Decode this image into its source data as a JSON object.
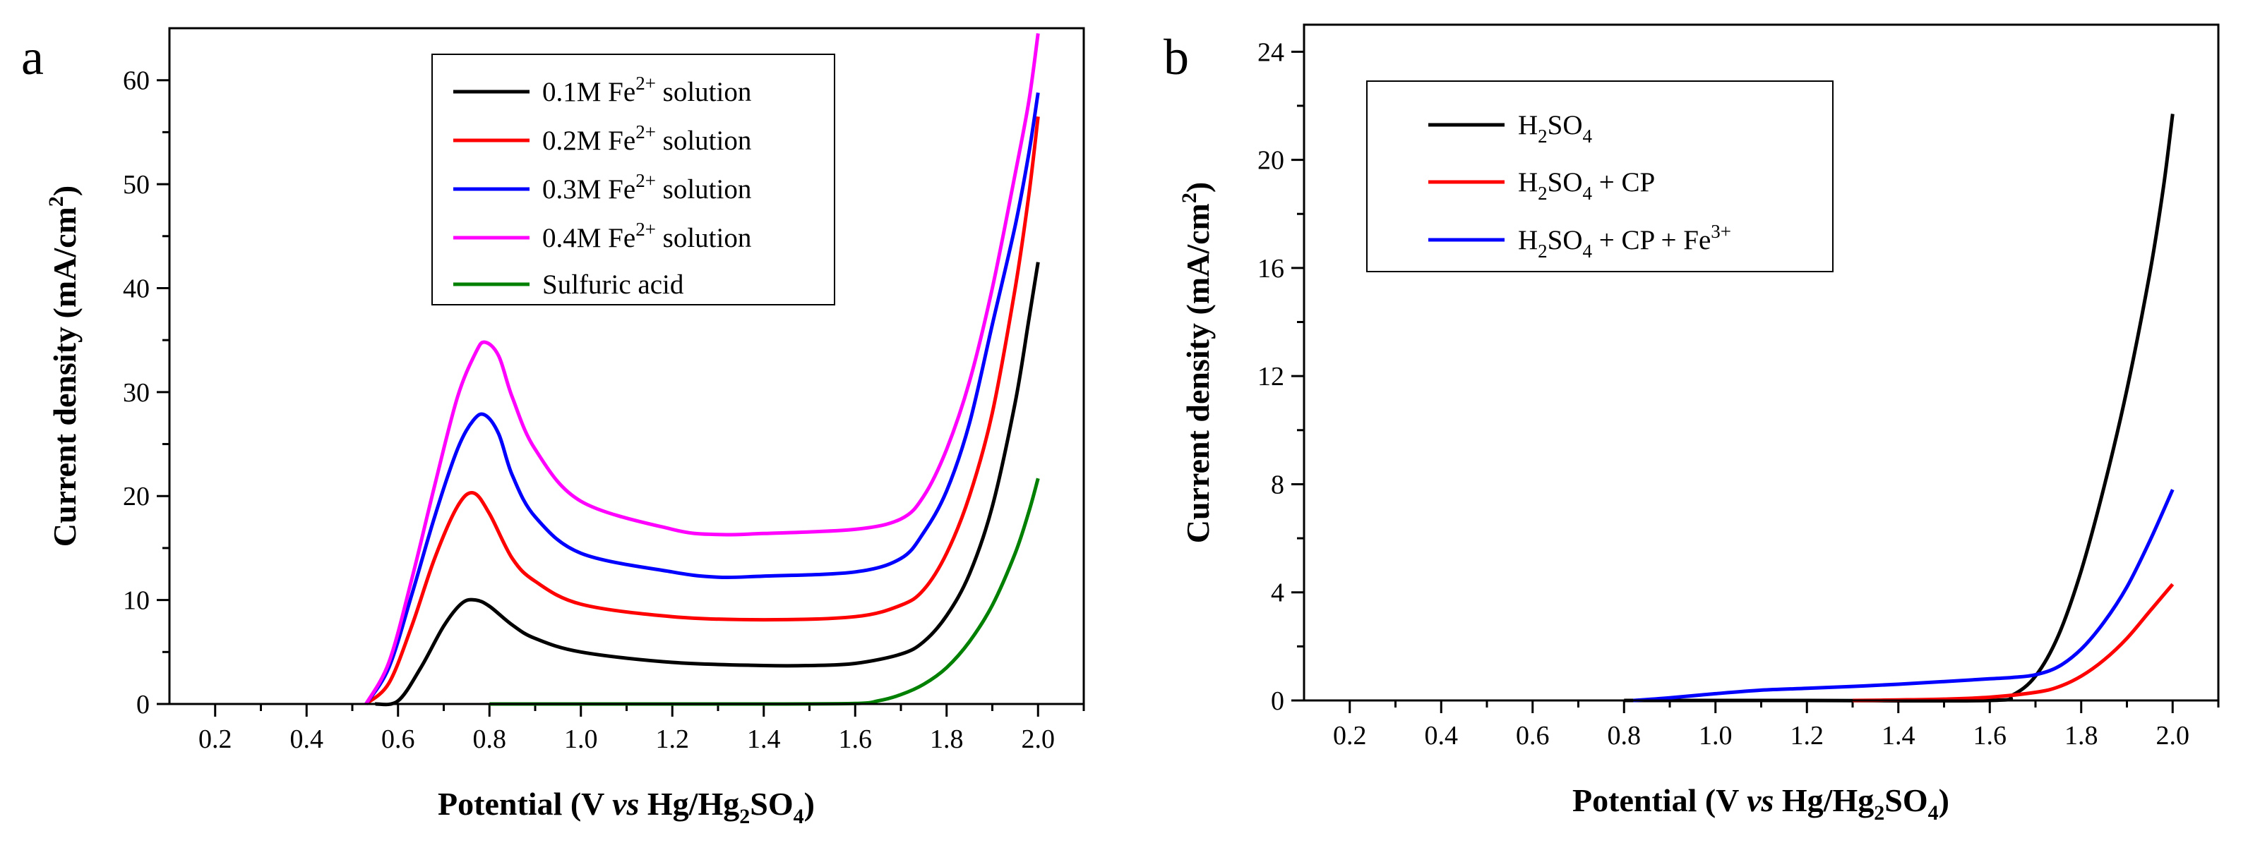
{
  "charts": [
    {
      "panel_label": "a",
      "x_axis": {
        "label_prefix": "Potential (V ",
        "label_italic": "vs",
        "label_middle": " Hg/Hg",
        "label_sub": "2",
        "label_after": "SO",
        "label_sub2": "4",
        "label_close": ")"
      },
      "y_axis": {
        "label_prefix": "Current density (mA/cm",
        "label_sup": "2",
        "label_close": ")"
      },
      "legend": [
        {
          "main": "0.1M  Fe",
          "sup": "2+",
          "after": " solution",
          "color": "#000000"
        },
        {
          "main": "0.2M Fe",
          "sup": "2+",
          "after": " solution",
          "color": "#ff0000"
        },
        {
          "main": "0.3M  Fe",
          "sup": "2+",
          "after": " solution",
          "color": "#0000ff"
        },
        {
          "main": "0.4M  Fe",
          "sup": "2+",
          "after": " solution",
          "color": "#ff00ff"
        },
        {
          "main": "Sulfuric acid",
          "sup": "",
          "after": "",
          "color": "#008000"
        }
      ]
    },
    {
      "panel_label": "b",
      "x_axis": {
        "label_prefix": "Potential (V ",
        "label_italic": "vs",
        "label_middle": " Hg/Hg",
        "label_sub": "2",
        "label_after": "SO",
        "label_sub2": "4",
        "label_close": ")"
      },
      "y_axis": {
        "label_prefix": "Current density (mA/cm",
        "label_sup": "2",
        "label_close": ")"
      },
      "legend": [
        {
          "p1": "H",
          "s1": "2",
          "p2": "SO",
          "s2": "4",
          "p3": "",
          "sup": "",
          "color": "#000000"
        },
        {
          "p1": "H",
          "s1": "2",
          "p2": "SO",
          "s2": "4",
          "p3": " + CP",
          "sup": "",
          "color": "#ff0000"
        },
        {
          "p1": "H",
          "s1": "2",
          "p2": "SO",
          "s2": "4",
          "p3": " + CP + Fe",
          "sup": "3+",
          "color": "#0000ff"
        }
      ]
    }
  ],
  "chart_data": [
    {
      "type": "line",
      "title": "a",
      "xlabel": "Potential (V vs Hg/Hg2SO4)",
      "ylabel": "Current density (mA/cm2)",
      "xlim": [
        0.1,
        2.1
      ],
      "ylim": [
        0,
        65
      ],
      "xticks": [
        0.2,
        0.4,
        0.6,
        0.8,
        1.0,
        1.2,
        1.4,
        1.6,
        1.8,
        2.0
      ],
      "xtick_labels": [
        "0.2",
        "0.4",
        "0.6",
        "0.8",
        "1.0",
        "1.2",
        "1.4",
        "1.6",
        "1.8",
        "2.0"
      ],
      "yticks": [
        0,
        10,
        20,
        30,
        40,
        50,
        60
      ],
      "ytick_labels": [
        "0",
        "10",
        "20",
        "30",
        "40",
        "50",
        "60"
      ],
      "series": [
        {
          "name": "0.1M Fe2+ solution",
          "color": "#000000",
          "x": [
            0.55,
            0.6,
            0.65,
            0.7,
            0.74,
            0.77,
            0.8,
            0.85,
            0.9,
            1.0,
            1.2,
            1.4,
            1.5,
            1.6,
            1.7,
            1.75,
            1.8,
            1.85,
            1.9,
            1.95,
            1.98,
            2.0
          ],
          "y": [
            0,
            0.3,
            3.5,
            7.5,
            9.7,
            10.0,
            9.4,
            7.6,
            6.3,
            5.0,
            4.0,
            3.7,
            3.7,
            3.9,
            4.8,
            6.0,
            8.5,
            12.5,
            19.0,
            29.0,
            37.0,
            42.5
          ]
        },
        {
          "name": "0.2M Fe2+ solution",
          "color": "#ff0000",
          "x": [
            0.53,
            0.58,
            0.63,
            0.68,
            0.73,
            0.765,
            0.8,
            0.85,
            0.9,
            1.0,
            1.2,
            1.4,
            1.6,
            1.7,
            1.75,
            1.8,
            1.85,
            1.9,
            1.95,
            1.98,
            2.0
          ],
          "y": [
            0,
            2.0,
            7.5,
            14.0,
            19.0,
            20.3,
            18.3,
            14.0,
            11.8,
            9.6,
            8.4,
            8.1,
            8.4,
            9.5,
            11.0,
            14.5,
            20.0,
            28.0,
            40.0,
            49.0,
            56.5
          ]
        },
        {
          "name": "0.3M Fe2+ solution",
          "color": "#0000ff",
          "x": [
            0.53,
            0.58,
            0.63,
            0.68,
            0.73,
            0.765,
            0.79,
            0.82,
            0.85,
            0.9,
            1.0,
            1.2,
            1.3,
            1.4,
            1.6,
            1.7,
            1.75,
            1.8,
            1.85,
            1.9,
            1.95,
            1.98,
            2.0
          ],
          "y": [
            0,
            3.5,
            10.5,
            18.0,
            24.5,
            27.3,
            27.8,
            26.0,
            22.0,
            18.0,
            14.5,
            12.7,
            12.2,
            12.3,
            12.7,
            14.0,
            16.5,
            20.5,
            27.0,
            36.5,
            46.0,
            53.0,
            58.8
          ]
        },
        {
          "name": "0.4M Fe2+ solution",
          "color": "#ff00ff",
          "x": [
            0.53,
            0.58,
            0.63,
            0.68,
            0.73,
            0.77,
            0.79,
            0.82,
            0.85,
            0.9,
            1.0,
            1.2,
            1.3,
            1.4,
            1.6,
            1.7,
            1.75,
            1.8,
            1.85,
            1.9,
            1.95,
            1.98,
            2.0
          ],
          "y": [
            0,
            4.0,
            12.0,
            21.0,
            29.5,
            33.8,
            34.8,
            33.5,
            29.5,
            24.5,
            19.5,
            16.8,
            16.3,
            16.4,
            16.8,
            17.8,
            20.0,
            24.5,
            31.0,
            40.0,
            51.0,
            58.0,
            64.5
          ]
        },
        {
          "name": "Sulfuric acid",
          "color": "#008000",
          "x": [
            0.8,
            1.0,
            1.2,
            1.4,
            1.6,
            1.65,
            1.7,
            1.75,
            1.8,
            1.85,
            1.9,
            1.95,
            1.98,
            2.0
          ],
          "y": [
            0,
            0,
            0,
            0,
            0.05,
            0.3,
            0.9,
            1.9,
            3.5,
            6.0,
            9.5,
            14.5,
            18.5,
            21.7
          ]
        }
      ]
    },
    {
      "type": "line",
      "title": "b",
      "xlabel": "Potential (V vs Hg/Hg2SO4)",
      "ylabel": "Current density (mA/cm2)",
      "xlim": [
        0.1,
        2.1
      ],
      "ylim": [
        0,
        25
      ],
      "xticks": [
        0.2,
        0.4,
        0.6,
        0.8,
        1.0,
        1.2,
        1.4,
        1.6,
        1.8,
        2.0
      ],
      "xtick_labels": [
        "0.2",
        "0.4",
        "0.6",
        "0.8",
        "1.0",
        "1.2",
        "1.4",
        "1.6",
        "1.8",
        "2.0"
      ],
      "yticks": [
        0,
        4,
        8,
        12,
        16,
        20,
        24
      ],
      "ytick_labels": [
        "0",
        "4",
        "8",
        "12",
        "16",
        "20",
        "24"
      ],
      "series": [
        {
          "name": "H2SO4",
          "color": "#000000",
          "x": [
            0.8,
            1.2,
            1.6,
            1.65,
            1.7,
            1.75,
            1.8,
            1.85,
            1.9,
            1.95,
            1.98,
            2.0
          ],
          "y": [
            0,
            0,
            0,
            0.2,
            0.9,
            2.4,
            4.8,
            7.9,
            11.5,
            15.8,
            19.0,
            21.7
          ]
        },
        {
          "name": "H2SO4 + CP",
          "color": "#ff0000",
          "x": [
            1.3,
            1.4,
            1.5,
            1.6,
            1.7,
            1.75,
            1.8,
            1.85,
            1.9,
            1.95,
            2.0
          ],
          "y": [
            0,
            0.02,
            0.05,
            0.12,
            0.3,
            0.5,
            0.9,
            1.5,
            2.3,
            3.3,
            4.3
          ]
        },
        {
          "name": "H2SO4 + CP + Fe3+",
          "color": "#0000ff",
          "x": [
            0.82,
            0.9,
            1.0,
            1.1,
            1.2,
            1.3,
            1.4,
            1.5,
            1.6,
            1.65,
            1.7,
            1.75,
            1.8,
            1.85,
            1.9,
            1.95,
            2.0
          ],
          "y": [
            0,
            0.1,
            0.25,
            0.38,
            0.45,
            0.52,
            0.6,
            0.7,
            0.8,
            0.85,
            0.95,
            1.25,
            1.9,
            2.9,
            4.2,
            5.9,
            7.8
          ]
        }
      ]
    }
  ]
}
